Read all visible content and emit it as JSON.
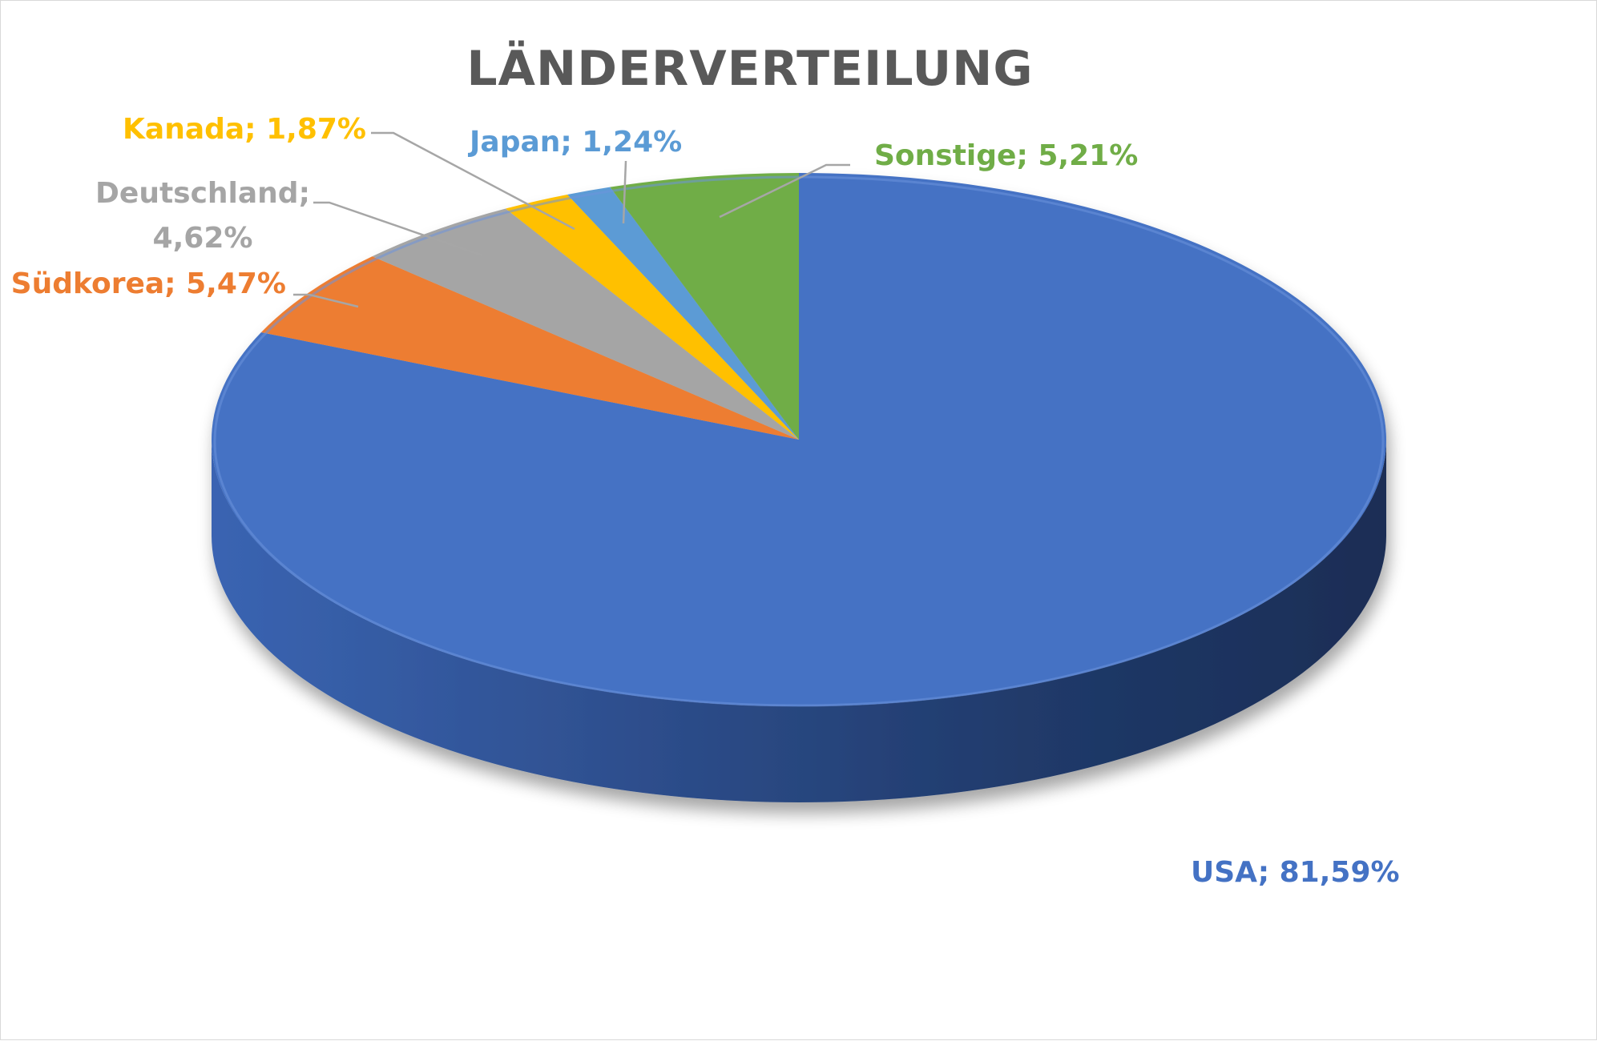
{
  "chart_data": {
    "type": "pie",
    "title": "LÄNDERVERTEILUNG",
    "style": "3d",
    "slices": [
      {
        "name": "USA",
        "value": 81.59,
        "label": "USA; 81,59%",
        "color": "#4472c4"
      },
      {
        "name": "Südkorea",
        "value": 5.47,
        "label": "Südkorea; 5,47%",
        "color": "#ed7d31"
      },
      {
        "name": "Deutschland",
        "value": 4.62,
        "label_lines": [
          "Deutschland;",
          "4,62%"
        ],
        "color": "#a5a5a5"
      },
      {
        "name": "Kanada",
        "value": 1.87,
        "label": "Kanada; 1,87%",
        "color": "#ffc000"
      },
      {
        "name": "Japan",
        "value": 1.24,
        "label": "Japan; 1,24%",
        "color": "#5b9bd5"
      },
      {
        "name": "Sonstige",
        "value": 5.21,
        "label": "Sonstige; 5,21%",
        "color": "#70ad47"
      }
    ],
    "legend": "none",
    "label_color_usa": "#4472c4",
    "label_color_suedkorea": "#ed7d31",
    "label_color_deutschland": "#a5a5a5",
    "label_color_kanada": "#ffc000",
    "label_color_japan": "#5b9bd5",
    "label_color_sonstige": "#70ad47"
  }
}
